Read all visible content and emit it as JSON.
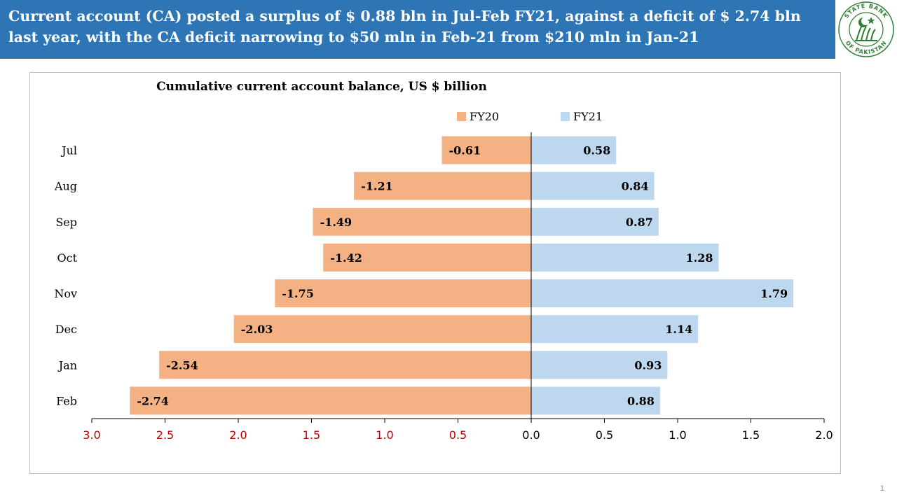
{
  "header": {
    "title": "Current account (CA) posted a surplus of $ 0.88 bln in Jul-Feb FY21, against a deficit of $ 2.74 bln last year, with the CA deficit narrowing to $50 mln in Feb-21 from $210 mln in Jan-21"
  },
  "logo": {
    "text_top": "STATE BANK",
    "text_bottom": "OF PAKISTAN"
  },
  "colors": {
    "header_bg": "#2e75b6",
    "fy20": "#f4b183",
    "fy21": "#bdd7ee",
    "neg_tick": "#c00000",
    "logo_green": "#2e7d32"
  },
  "page_number": "1",
  "chart_data": {
    "type": "bar",
    "orientation": "horizontal",
    "title": "Cumulative current account balance, US $ billion",
    "categories": [
      "Jul",
      "Aug",
      "Sep",
      "Oct",
      "Nov",
      "Dec",
      "Jan",
      "Feb"
    ],
    "series": [
      {
        "name": "FY20",
        "values": [
          -0.61,
          -1.21,
          -1.49,
          -1.42,
          -1.75,
          -2.03,
          -2.54,
          -2.74
        ],
        "labels": [
          "-0.61",
          "-1.21",
          "-1.49",
          "-1.42",
          "-1.75",
          "-2.03",
          "-2.54",
          "-2.74"
        ]
      },
      {
        "name": "FY21",
        "values": [
          0.58,
          0.84,
          0.87,
          1.28,
          1.79,
          1.14,
          0.93,
          0.88
        ],
        "labels": [
          "0.58",
          "0.84",
          "0.87",
          "1.28",
          "1.79",
          "1.14",
          "0.93",
          "0.88"
        ]
      }
    ],
    "xlim": [
      -3.0,
      2.0
    ],
    "x_ticks": [
      -3.0,
      -2.5,
      -2.0,
      -1.5,
      -1.0,
      -0.5,
      0.0,
      0.5,
      1.0,
      1.5,
      2.0
    ],
    "x_tick_labels": [
      "3.0",
      "2.5",
      "2.0",
      "1.5",
      "1.0",
      "0.5",
      "0.0",
      "0.5",
      "1.0",
      "1.5",
      "2.0"
    ],
    "xlabel": "",
    "ylabel": "",
    "legend": "top-center",
    "grid": false
  }
}
